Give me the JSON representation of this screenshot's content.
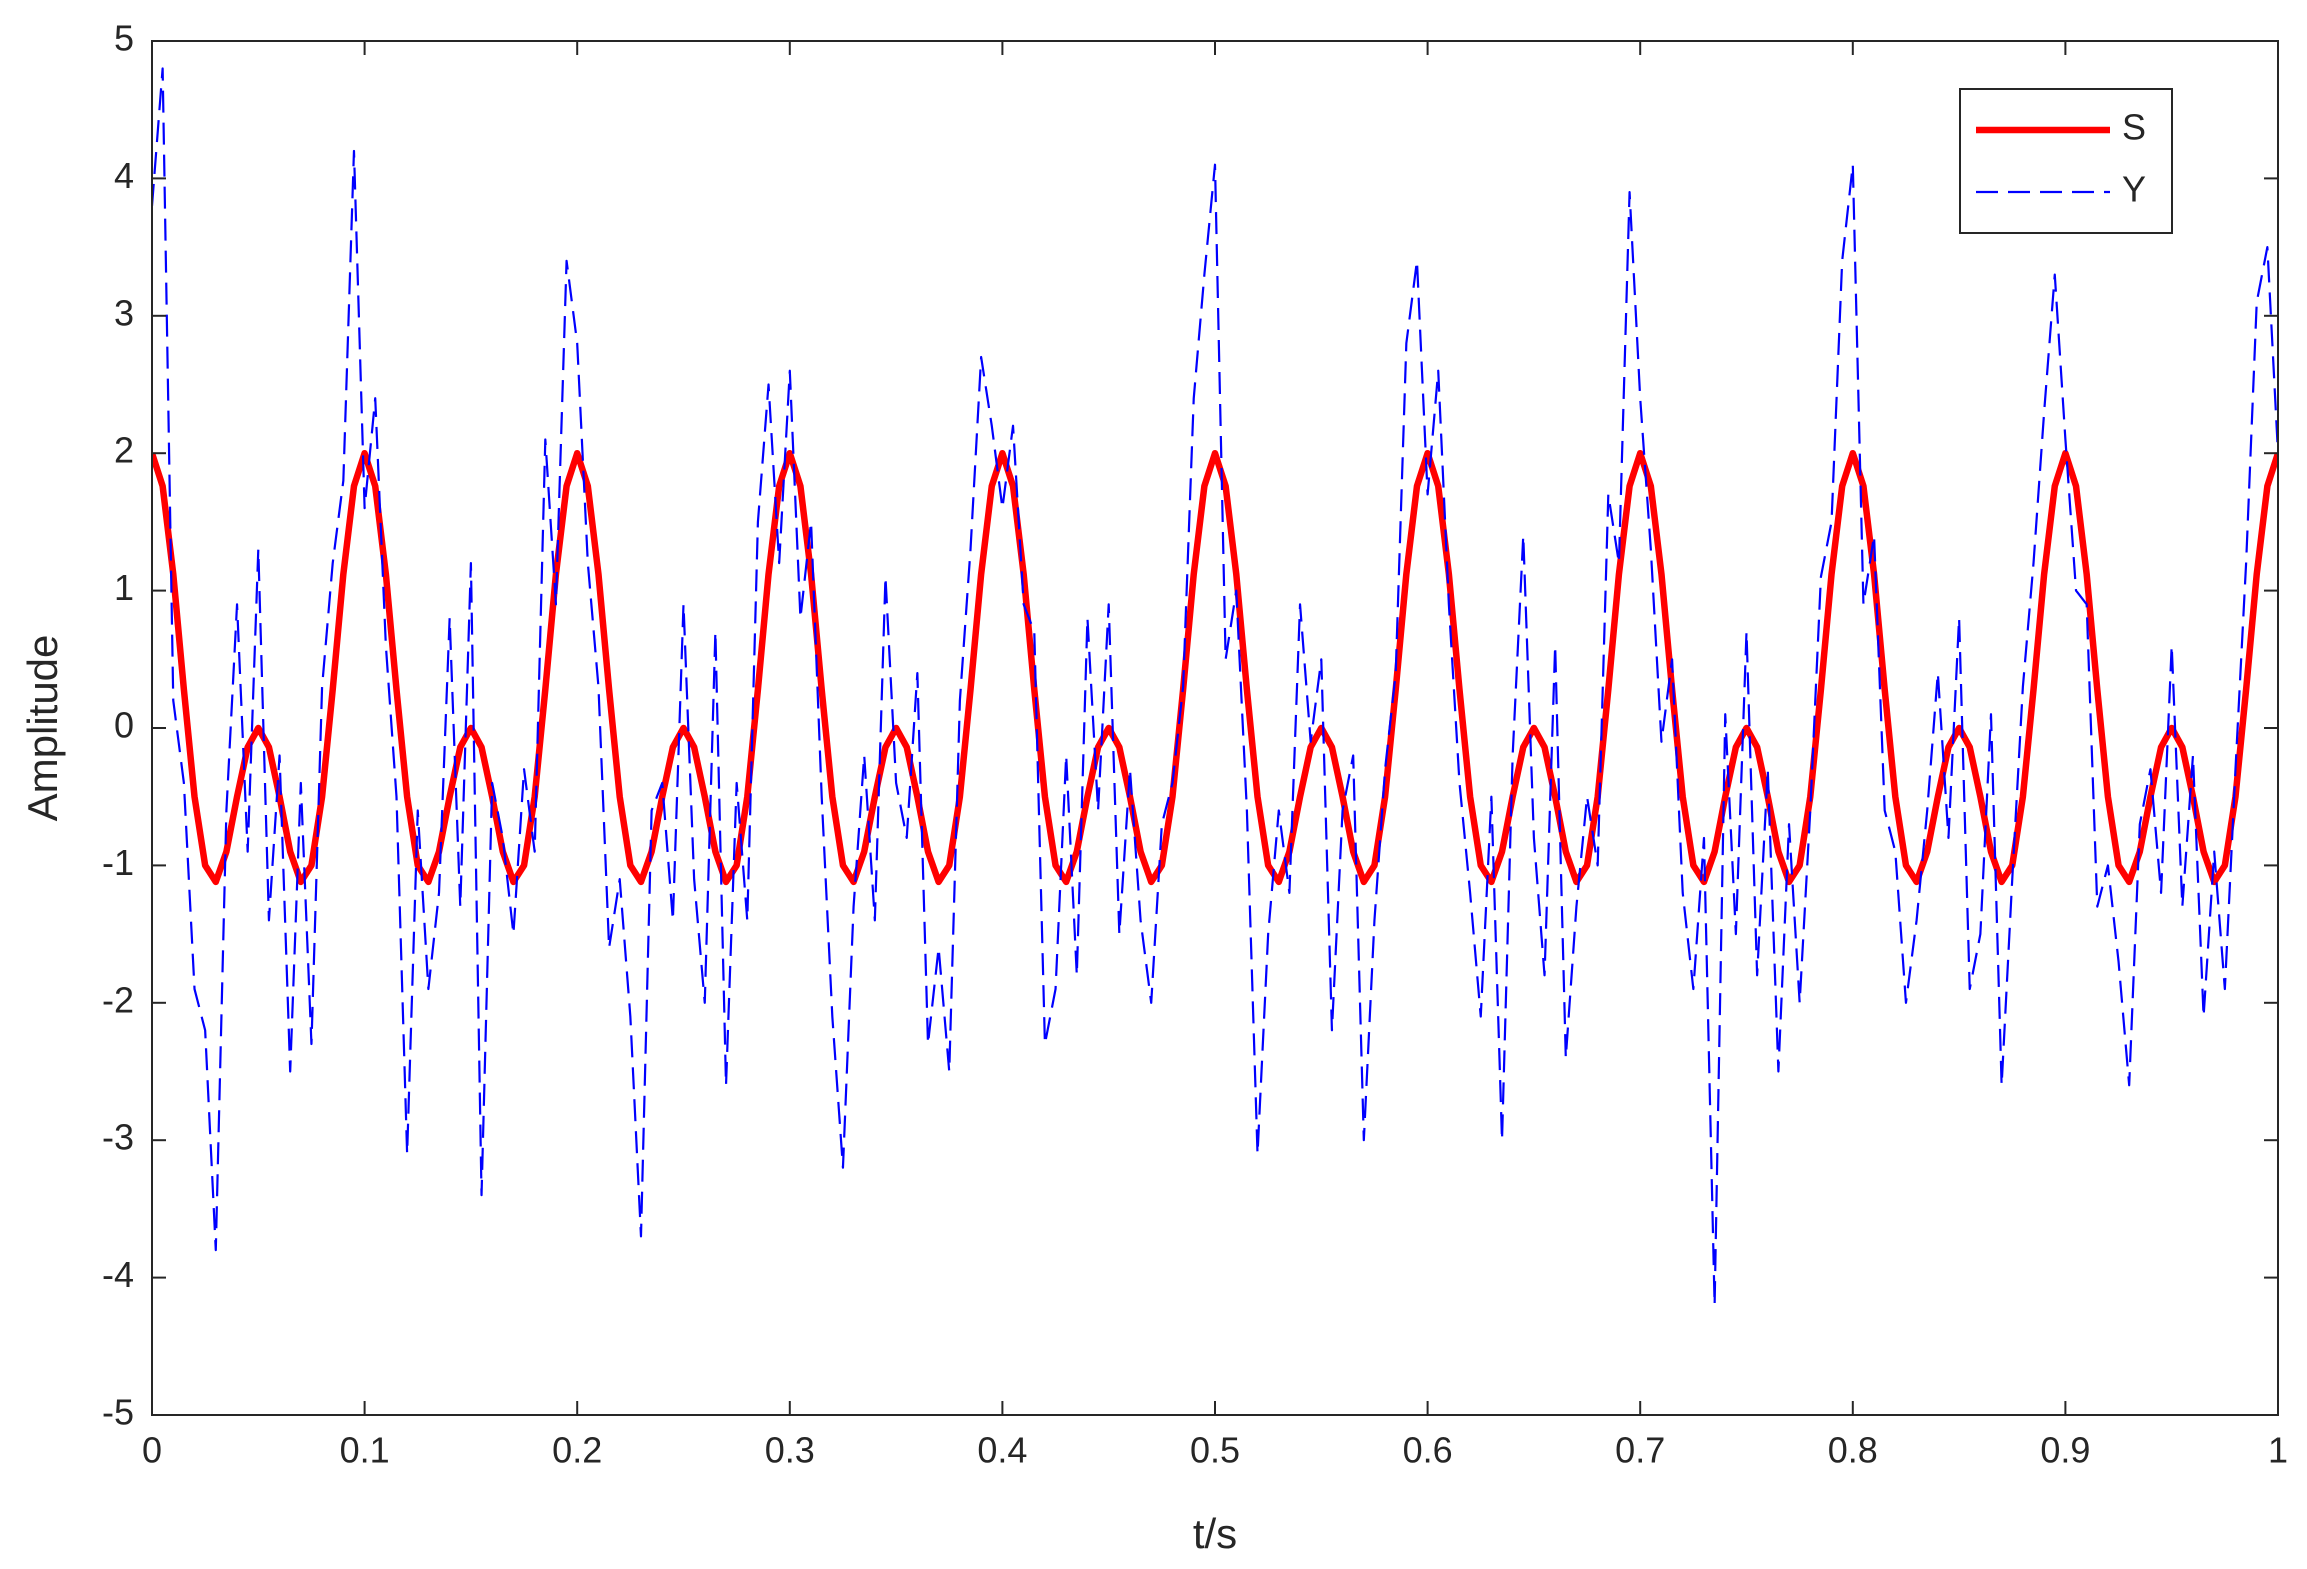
{
  "chart_data": {
    "type": "line",
    "xlabel": "t/s",
    "ylabel": "Amplitude",
    "x": [
      0,
      0.005,
      0.01,
      0.015,
      0.02,
      0.025,
      0.03,
      0.035,
      0.04,
      0.045,
      0.05,
      0.055,
      0.06,
      0.065,
      0.07,
      0.075,
      0.08,
      0.085,
      0.09,
      0.095,
      0.1,
      0.105,
      0.11,
      0.115,
      0.12,
      0.125,
      0.13,
      0.135,
      0.14,
      0.145,
      0.15,
      0.155,
      0.16,
      0.165,
      0.17,
      0.175,
      0.18,
      0.185,
      0.19,
      0.195,
      0.2,
      0.205,
      0.21,
      0.215,
      0.22,
      0.225,
      0.23,
      0.235,
      0.24,
      0.245,
      0.25,
      0.255,
      0.26,
      0.265,
      0.27,
      0.275,
      0.28,
      0.285,
      0.29,
      0.295,
      0.3,
      0.305,
      0.31,
      0.315,
      0.32,
      0.325,
      0.33,
      0.335,
      0.34,
      0.345,
      0.35,
      0.355,
      0.36,
      0.365,
      0.37,
      0.375,
      0.38,
      0.385,
      0.39,
      0.395,
      0.4,
      0.405,
      0.41,
      0.415,
      0.42,
      0.425,
      0.43,
      0.435,
      0.44,
      0.445,
      0.45,
      0.455,
      0.46,
      0.465,
      0.47,
      0.475,
      0.48,
      0.485,
      0.49,
      0.495,
      0.5,
      0.505,
      0.51,
      0.515,
      0.52,
      0.525,
      0.53,
      0.535,
      0.54,
      0.545,
      0.55,
      0.555,
      0.56,
      0.565,
      0.57,
      0.575,
      0.58,
      0.585,
      0.59,
      0.595,
      0.6,
      0.605,
      0.61,
      0.615,
      0.62,
      0.625,
      0.63,
      0.635,
      0.64,
      0.645,
      0.65,
      0.655,
      0.66,
      0.665,
      0.67,
      0.675,
      0.68,
      0.685,
      0.69,
      0.695,
      0.7,
      0.705,
      0.71,
      0.715,
      0.72,
      0.725,
      0.73,
      0.735,
      0.74,
      0.745,
      0.75,
      0.755,
      0.76,
      0.765,
      0.77,
      0.775,
      0.78,
      0.785,
      0.79,
      0.795,
      0.8,
      0.805,
      0.81,
      0.815,
      0.82,
      0.825,
      0.83,
      0.835,
      0.84,
      0.845,
      0.85,
      0.855,
      0.86,
      0.865,
      0.87,
      0.875,
      0.88,
      0.885,
      0.89,
      0.895,
      0.9,
      0.905,
      0.91,
      0.915,
      0.92,
      0.925,
      0.93,
      0.935,
      0.94,
      0.945,
      0.95,
      0.955,
      0.96,
      0.965,
      0.97,
      0.975,
      0.98,
      0.985,
      0.99,
      0.995,
      1
    ],
    "series": [
      {
        "name": "S",
        "color": "#ff0000",
        "values": [
          2,
          1.76,
          1.12,
          0.28,
          -0.5,
          -1,
          -1.12,
          -0.9,
          -0.5,
          -0.14,
          0,
          -0.14,
          -0.5,
          -0.9,
          -1.12,
          -1,
          -0.5,
          0.28,
          1.12,
          1.76,
          2,
          1.76,
          1.12,
          0.28,
          -0.5,
          -1,
          -1.12,
          -0.9,
          -0.5,
          -0.14,
          0,
          -0.14,
          -0.5,
          -0.9,
          -1.12,
          -1,
          -0.5,
          0.28,
          1.12,
          1.76,
          2,
          1.76,
          1.12,
          0.28,
          -0.5,
          -1,
          -1.12,
          -0.9,
          -0.5,
          -0.14,
          0,
          -0.14,
          -0.5,
          -0.9,
          -1.12,
          -1,
          -0.5,
          0.28,
          1.12,
          1.76,
          2,
          1.76,
          1.12,
          0.28,
          -0.5,
          -1,
          -1.12,
          -0.9,
          -0.5,
          -0.14,
          0,
          -0.14,
          -0.5,
          -0.9,
          -1.12,
          -1,
          -0.5,
          0.28,
          1.12,
          1.76,
          2,
          1.76,
          1.12,
          0.28,
          -0.5,
          -1,
          -1.12,
          -0.9,
          -0.5,
          -0.14,
          0,
          -0.14,
          -0.5,
          -0.9,
          -1.12,
          -1,
          -0.5,
          0.28,
          1.12,
          1.76,
          2,
          1.76,
          1.12,
          0.28,
          -0.5,
          -1,
          -1.12,
          -0.9,
          -0.5,
          -0.14,
          0,
          -0.14,
          -0.5,
          -0.9,
          -1.12,
          -1,
          -0.5,
          0.28,
          1.12,
          1.76,
          2,
          1.76,
          1.12,
          0.28,
          -0.5,
          -1,
          -1.12,
          -0.9,
          -0.5,
          -0.14,
          0,
          -0.14,
          -0.5,
          -0.9,
          -1.12,
          -1,
          -0.5,
          0.28,
          1.12,
          1.76,
          2,
          1.76,
          1.12,
          0.28,
          -0.5,
          -1,
          -1.12,
          -0.9,
          -0.5,
          -0.14,
          0,
          -0.14,
          -0.5,
          -0.9,
          -1.12,
          -1,
          -0.5,
          0.28,
          1.12,
          1.76,
          2,
          1.76,
          1.12,
          0.28,
          -0.5,
          -1,
          -1.12,
          -0.9,
          -0.5,
          -0.14,
          0,
          -0.14,
          -0.5,
          -0.9,
          -1.12,
          -1,
          -0.5,
          0.28,
          1.12,
          1.76,
          2,
          1.76,
          1.12,
          0.28,
          -0.5,
          -1,
          -1.12,
          -0.9,
          -0.5,
          -0.14,
          0,
          -0.14,
          -0.5,
          -0.9,
          -1.12,
          -1,
          -0.5,
          0.28,
          1.12,
          1.76,
          2
        ]
      },
      {
        "name": "Y",
        "color": "#0000ff",
        "dashed": true,
        "values": [
          3.8,
          4.8,
          0.2,
          -0.4,
          -1.9,
          -2.2,
          -3.8,
          -0.6,
          0.9,
          -0.9,
          1.3,
          -1.4,
          -0.2,
          -2.5,
          -0.4,
          -2.3,
          0.3,
          1.2,
          1.8,
          4.2,
          1.6,
          2.4,
          0.6,
          -0.5,
          -3.1,
          -0.6,
          -1.9,
          -1.2,
          0.8,
          -1.3,
          1.2,
          -3.4,
          -0.4,
          -0.8,
          -1.5,
          -0.3,
          -0.9,
          2.1,
          0.9,
          3.4,
          2.8,
          1.2,
          0.3,
          -1.6,
          -1.1,
          -2.1,
          -3.7,
          -0.6,
          -0.4,
          -1.4,
          0.9,
          -1.1,
          -2.0,
          0.7,
          -2.6,
          -0.4,
          -1.4,
          1.5,
          2.5,
          1.2,
          2.6,
          0.8,
          1.5,
          -0.5,
          -2.1,
          -3.2,
          -1.3,
          -0.2,
          -1.4,
          1.1,
          -0.4,
          -0.8,
          0.4,
          -2.3,
          -1.6,
          -2.5,
          0.2,
          1.3,
          2.7,
          2.2,
          1.6,
          2.2,
          0.9,
          0.7,
          -2.3,
          -1.9,
          -0.2,
          -1.8,
          0.8,
          -0.6,
          0.9,
          -1.5,
          -0.3,
          -1.4,
          -2.0,
          -0.7,
          -0.4,
          0.3,
          2.4,
          3.3,
          4.1,
          0.5,
          1.0,
          -0.6,
          -3.1,
          -1.5,
          -0.6,
          -1.2,
          0.9,
          -0.1,
          0.5,
          -2.2,
          -0.6,
          -0.2,
          -3.0,
          -1.4,
          -0.3,
          0.4,
          2.8,
          3.4,
          1.7,
          2.6,
          0.9,
          -0.4,
          -1.2,
          -2.1,
          -0.5,
          -3.0,
          -0.2,
          1.4,
          -0.8,
          -1.8,
          0.6,
          -2.4,
          -1.3,
          -0.5,
          -1.0,
          1.7,
          1.2,
          3.9,
          2.4,
          1.3,
          -0.1,
          0.5,
          -1.2,
          -1.9,
          -0.8,
          -4.2,
          0.1,
          -1.5,
          0.7,
          -1.8,
          -0.3,
          -2.5,
          -0.7,
          -2.0,
          -0.6,
          1.1,
          1.5,
          3.4,
          4.1,
          0.9,
          1.4,
          -0.6,
          -0.9,
          -2.0,
          -1.4,
          -0.6,
          0.4,
          -0.8,
          0.8,
          -1.9,
          -1.5,
          0.1,
          -2.6,
          -1.1,
          0.3,
          1.2,
          2.3,
          3.3,
          2.1,
          1.0,
          0.9,
          -1.3,
          -1.0,
          -1.7,
          -2.6,
          -0.7,
          -0.3,
          -1.2,
          0.6,
          -1.3,
          -0.2,
          -2.1,
          -0.9,
          -1.9,
          -0.3,
          1.2,
          3.1,
          3.5,
          2.0
        ]
      }
    ],
    "xlim": [
      0,
      1
    ],
    "xticks": [
      0,
      0.1,
      0.2,
      0.3,
      0.4,
      0.5,
      0.6,
      0.7,
      0.8,
      0.9,
      1
    ],
    "ylim": [
      -5,
      5
    ],
    "yticks": [
      -5,
      -4,
      -3,
      -2,
      -1,
      0,
      1,
      2,
      3,
      4,
      5
    ],
    "grid": false,
    "legend": "upper right"
  }
}
